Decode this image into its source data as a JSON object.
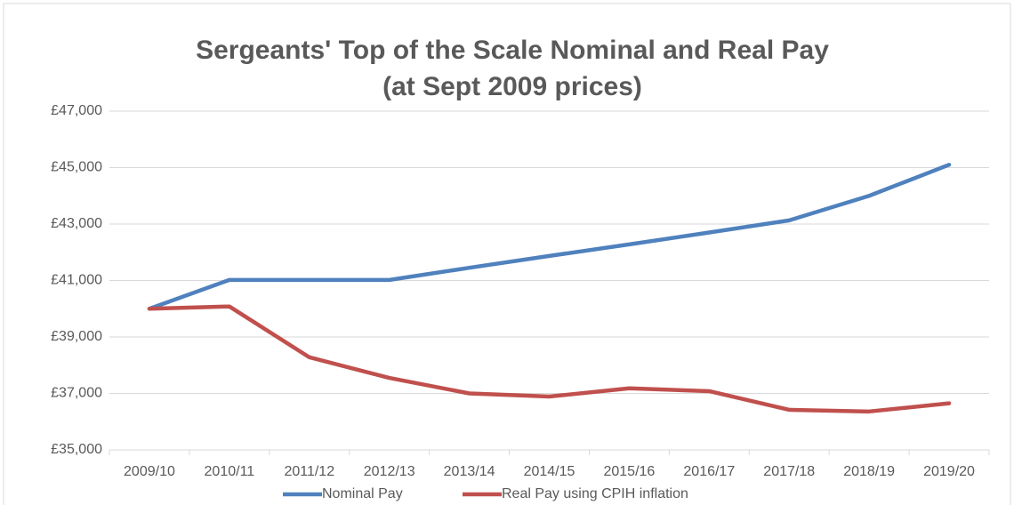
{
  "chart_data": {
    "type": "line",
    "title": [
      "Sergeants' Top of the Scale Nominal and Real Pay",
      "(at Sept 2009 prices)"
    ],
    "categories": [
      "2009/10",
      "2010/11",
      "2011/12",
      "2012/13",
      "2013/14",
      "2014/15",
      "2015/16",
      "2016/17",
      "2017/18",
      "2018/19",
      "2019/20"
    ],
    "series": [
      {
        "name": "Nominal Pay",
        "color": "#4f81bd",
        "values": [
          40000,
          41020,
          41020,
          41020,
          41450,
          41870,
          42280,
          42700,
          43130,
          44000,
          45100
        ]
      },
      {
        "name": "Real Pay using CPIH inflation",
        "color": "#c0504d",
        "values": [
          40000,
          40080,
          38280,
          37550,
          37000,
          36890,
          37180,
          37080,
          36420,
          36360,
          36650
        ]
      }
    ],
    "ylim": [
      35000,
      47000
    ],
    "yticks": [
      {
        "value": 35000,
        "label": "£35,000"
      },
      {
        "value": 37000,
        "label": "£37,000"
      },
      {
        "value": 39000,
        "label": "£39,000"
      },
      {
        "value": 41000,
        "label": "£41,000"
      },
      {
        "value": 43000,
        "label": "£43,000"
      },
      {
        "value": 45000,
        "label": "£45,000"
      },
      {
        "value": 47000,
        "label": "£47,000"
      }
    ],
    "grid": true,
    "legend": "bottom"
  }
}
